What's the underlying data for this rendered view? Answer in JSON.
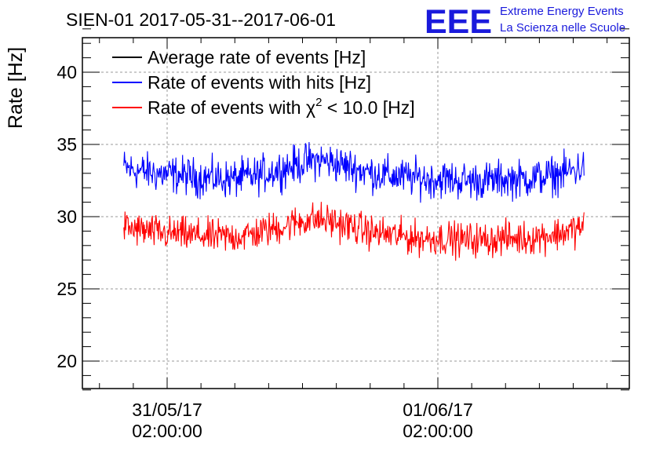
{
  "header": {
    "title": "SIEN-01 2017-05-31--2017-06-01"
  },
  "logo": {
    "mark": "EEE",
    "line1": "Extreme Energy Events",
    "line2": "La Scienza nelle Scuole",
    "color": "#1a1adc"
  },
  "chart_data": {
    "type": "line",
    "ylabel": "Rate [Hz]",
    "xlabel": "",
    "ylim": [
      18,
      43
    ],
    "yticks": [
      20,
      25,
      30,
      35,
      40
    ],
    "xlim": [
      -0.34,
      1.7
    ],
    "x_tick_labels": [
      {
        "x": 0,
        "date": "31/05/17",
        "time": "02:00:00"
      },
      {
        "x": 1,
        "date": "01/06/17",
        "time": "02:00:00"
      }
    ],
    "grid": true,
    "legend_position": "top-left",
    "legend": [
      {
        "label_pre": "Average rate of events [Hz]",
        "label_post": "",
        "color": "#000000"
      },
      {
        "label_pre": "Rate of events with hits [Hz]",
        "label_post": "",
        "color": "#0000ff"
      },
      {
        "label_pre": "Rate of events with ",
        "symbol": "χ",
        "sup": "2",
        "label_post": " < 10.0 [Hz]",
        "color": "#ff0000"
      }
    ],
    "series": [
      {
        "name": "Rate of events with hits [Hz]",
        "color": "#0000ff",
        "x": [
          -0.16,
          -0.12,
          -0.08,
          -0.04,
          0.0,
          0.04,
          0.08,
          0.12,
          0.16,
          0.2,
          0.24,
          0.28,
          0.32,
          0.36,
          0.4,
          0.44,
          0.48,
          0.52,
          0.56,
          0.6,
          0.64,
          0.68,
          0.72,
          0.76,
          0.8,
          0.84,
          0.88,
          0.92,
          0.96,
          1.0,
          1.04,
          1.08,
          1.12,
          1.16,
          1.2,
          1.24,
          1.28,
          1.32,
          1.36,
          1.4,
          1.44,
          1.48,
          1.52,
          1.54
        ],
        "y": [
          33.4,
          33.2,
          33.1,
          33.0,
          32.9,
          32.9,
          32.8,
          32.7,
          32.7,
          32.6,
          32.6,
          32.7,
          32.8,
          33.0,
          33.2,
          33.4,
          33.6,
          33.8,
          33.9,
          33.8,
          33.6,
          33.4,
          33.2,
          33.0,
          32.9,
          32.8,
          32.7,
          32.7,
          32.6,
          32.6,
          32.6,
          32.5,
          32.5,
          32.5,
          32.5,
          32.6,
          32.6,
          32.6,
          32.7,
          32.8,
          32.9,
          33.1,
          33.3,
          33.5
        ],
        "noise_amplitude": 1.0
      },
      {
        "name": "Rate of events with χ2 < 10.0 [Hz]",
        "color": "#ff0000",
        "x": [
          -0.16,
          -0.12,
          -0.08,
          -0.04,
          0.0,
          0.04,
          0.08,
          0.12,
          0.16,
          0.2,
          0.24,
          0.28,
          0.32,
          0.36,
          0.4,
          0.44,
          0.48,
          0.52,
          0.56,
          0.6,
          0.64,
          0.68,
          0.72,
          0.76,
          0.8,
          0.84,
          0.88,
          0.92,
          0.96,
          1.0,
          1.04,
          1.08,
          1.12,
          1.16,
          1.2,
          1.24,
          1.28,
          1.32,
          1.36,
          1.4,
          1.44,
          1.48,
          1.52,
          1.54
        ],
        "y": [
          29.3,
          29.1,
          29.0,
          28.9,
          28.8,
          28.8,
          28.7,
          28.7,
          28.6,
          28.6,
          28.6,
          28.7,
          28.8,
          29.0,
          29.2,
          29.4,
          29.6,
          29.8,
          29.8,
          29.7,
          29.5,
          29.3,
          29.1,
          28.9,
          28.8,
          28.7,
          28.6,
          28.5,
          28.5,
          28.5,
          28.5,
          28.4,
          28.4,
          28.4,
          28.4,
          28.5,
          28.5,
          28.5,
          28.6,
          28.7,
          28.8,
          29.0,
          29.2,
          29.4
        ],
        "noise_amplitude": 0.9
      }
    ]
  }
}
